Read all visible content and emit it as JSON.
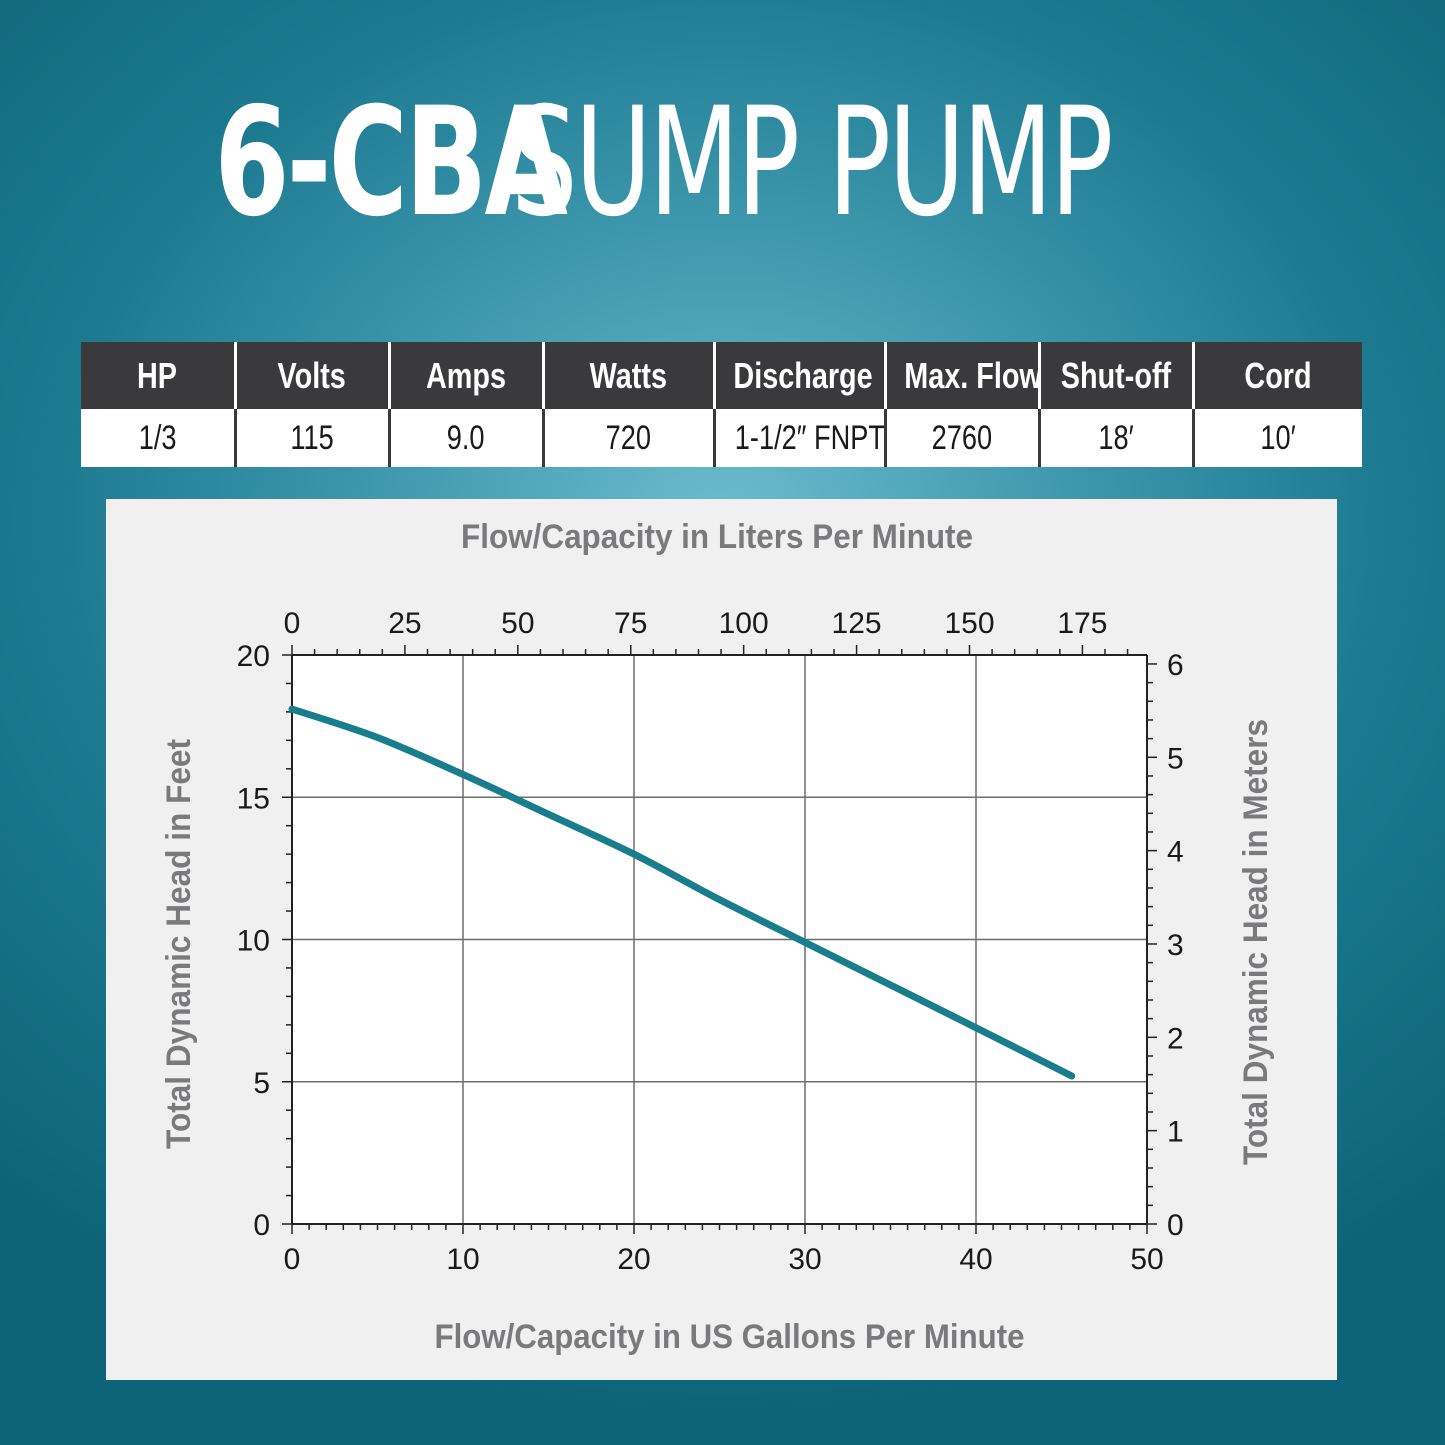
{
  "title": {
    "model": "6-CBA",
    "product": "SUMP PUMP"
  },
  "specs": {
    "headers": [
      "HP",
      "Volts",
      "Amps",
      "Watts",
      "Discharge",
      "Max. Flow",
      "Shut-off",
      "Cord"
    ],
    "values": [
      "1/3",
      "115",
      "9.0",
      "720",
      "1-1/2″ FNPT",
      "2760",
      "18′",
      "10′"
    ]
  },
  "colors": {
    "curve": "#197e8c",
    "header_bg": "#3a3a3c",
    "panel_bg": "#f0f0f0",
    "axis_text": "#7a7a7c"
  },
  "chart_data": {
    "type": "line",
    "title": "",
    "xlabel": "Flow/Capacity in US Gallons Per Minute",
    "x2label": "Flow/Capacity in Liters Per Minute",
    "ylabel": "Total Dynamic Head in Feet",
    "y2label": "Total Dynamic Head in Meters",
    "xlim": [
      0,
      50
    ],
    "ylim": [
      0,
      20
    ],
    "x2lim": [
      0,
      189.3
    ],
    "y2lim": [
      0,
      6.096
    ],
    "xticks": [
      "0",
      "10",
      "20",
      "30",
      "40",
      "50"
    ],
    "yticks": [
      "0",
      "5",
      "10",
      "15",
      "20"
    ],
    "x2ticks": [
      "0",
      "25",
      "50",
      "75",
      "100",
      "125",
      "150",
      "175"
    ],
    "y2ticks": [
      "0",
      "1",
      "2",
      "3",
      "4",
      "5",
      "6"
    ],
    "grid": true,
    "series": [
      {
        "x": [
          0,
          5,
          10,
          15,
          20,
          25,
          30,
          35,
          40,
          45.6
        ],
        "y": [
          18.1,
          17.1,
          15.8,
          14.4,
          13.0,
          11.4,
          9.9,
          8.4,
          6.9,
          5.2
        ]
      }
    ]
  }
}
